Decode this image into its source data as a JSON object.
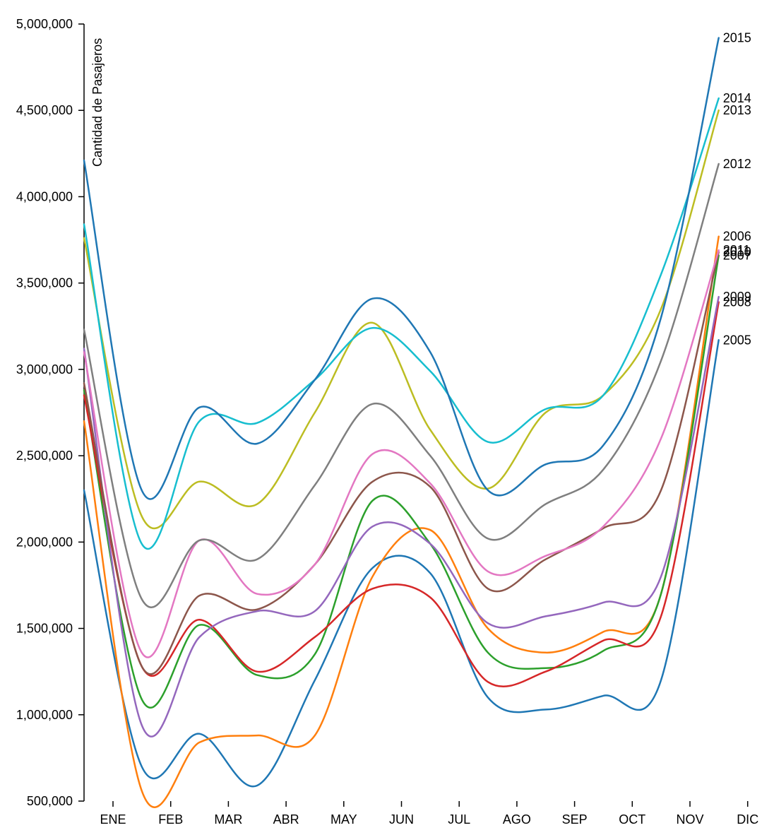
{
  "chart_data": {
    "type": "line",
    "title": "",
    "xlabel": "",
    "ylabel": "Cantidad de Pasajeros",
    "x_ticks": [
      "ENE",
      "FEB",
      "MAR",
      "ABR",
      "MAY",
      "JUN",
      "JUL",
      "AGO",
      "SEP",
      "OCT",
      "NOV",
      "DIC"
    ],
    "y_ticks": [
      500000,
      1000000,
      1500000,
      2000000,
      2500000,
      3000000,
      3500000,
      4000000,
      4500000,
      5000000
    ],
    "y_tick_labels": [
      "500,000",
      "1,000,000",
      "1,500,000",
      "2,000,000",
      "2,500,000",
      "3,000,000",
      "3,500,000",
      "4,000,000",
      "4,500,000",
      "5,000,000"
    ],
    "ylim": [
      500000,
      5000000
    ],
    "grid": false,
    "legend": "labels at line ends (right)",
    "series": [
      {
        "name": "2005",
        "color": "#1f77b4",
        "values": [
          2300000,
          700000,
          890000,
          590000,
          1200000,
          1850000,
          1820000,
          1100000,
          1030000,
          1110000,
          1200000,
          3170000
        ]
      },
      {
        "name": "2006",
        "color": "#ff7f0e",
        "values": [
          2700000,
          560000,
          840000,
          880000,
          880000,
          1800000,
          2070000,
          1500000,
          1360000,
          1480000,
          1700000,
          3770000
        ]
      },
      {
        "name": "2007",
        "color": "#2ca02c",
        "values": [
          2880000,
          1090000,
          1520000,
          1230000,
          1350000,
          2240000,
          1990000,
          1360000,
          1270000,
          1370000,
          1700000,
          3660000
        ]
      },
      {
        "name": "2008",
        "color": "#d62728",
        "values": [
          2850000,
          1280000,
          1550000,
          1250000,
          1450000,
          1730000,
          1680000,
          1190000,
          1250000,
          1430000,
          1570000,
          3390000
        ]
      },
      {
        "name": "2009",
        "color": "#9467bd",
        "values": [
          3120000,
          940000,
          1450000,
          1600000,
          1600000,
          2090000,
          1990000,
          1530000,
          1570000,
          1650000,
          1800000,
          3420000
        ]
      },
      {
        "name": "2010",
        "color": "#8c564b",
        "values": [
          2920000,
          1280000,
          1690000,
          1610000,
          1870000,
          2350000,
          2320000,
          1730000,
          1900000,
          2080000,
          2300000,
          3680000
        ]
      },
      {
        "name": "2011",
        "color": "#e377c2",
        "values": [
          3100000,
          1360000,
          2010000,
          1700000,
          1870000,
          2510000,
          2340000,
          1830000,
          1920000,
          2090000,
          2600000,
          3690000
        ]
      },
      {
        "name": "2012",
        "color": "#7f7f7f",
        "values": [
          3230000,
          1670000,
          2010000,
          1900000,
          2330000,
          2800000,
          2500000,
          2020000,
          2220000,
          2420000,
          3050000,
          4190000
        ]
      },
      {
        "name": "2013",
        "color": "#bcbd22",
        "values": [
          3760000,
          2150000,
          2350000,
          2220000,
          2750000,
          3270000,
          2650000,
          2310000,
          2750000,
          2850000,
          3350000,
          4500000
        ]
      },
      {
        "name": "2014",
        "color": "#17becf",
        "values": [
          3840000,
          1990000,
          2700000,
          2690000,
          2940000,
          3240000,
          2990000,
          2580000,
          2770000,
          2850000,
          3550000,
          4570000
        ]
      },
      {
        "name": "2015",
        "color": "#1f77b4",
        "values": [
          4210000,
          2300000,
          2780000,
          2570000,
          2940000,
          3410000,
          3100000,
          2300000,
          2450000,
          2560000,
          3300000,
          4920000
        ]
      }
    ]
  }
}
